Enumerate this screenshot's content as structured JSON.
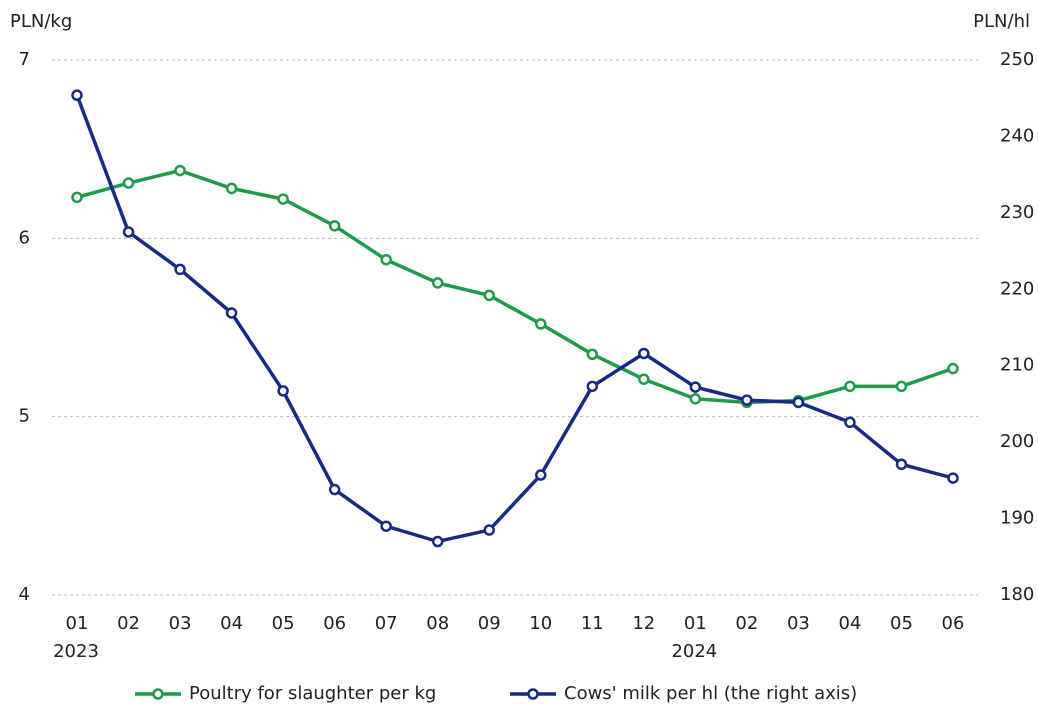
{
  "chart_data": {
    "type": "line",
    "categories": [
      "01",
      "02",
      "03",
      "04",
      "05",
      "06",
      "07",
      "08",
      "09",
      "10",
      "11",
      "12",
      "01",
      "02",
      "03",
      "04",
      "05",
      "06"
    ],
    "category_groups": [
      {
        "label": "2023",
        "start": 0
      },
      {
        "label": "2024",
        "start": 12
      }
    ],
    "ylabel": "PLN/kg",
    "y2label": "PLN/hl",
    "ylim": [
      4,
      7
    ],
    "yticks": [
      4,
      5,
      6,
      7
    ],
    "y2lim": [
      180,
      250
    ],
    "y2ticks": [
      180,
      190,
      200,
      210,
      220,
      230,
      240,
      250
    ],
    "grid": true,
    "legend": "bottom",
    "series": [
      {
        "name": "Poultry for slaughter per kg",
        "color": "#1e9a4a",
        "values": [
          6.23,
          6.31,
          6.38,
          6.28,
          6.22,
          6.07,
          5.88,
          5.75,
          5.68,
          5.52,
          5.35,
          5.21,
          5.1,
          5.08,
          5.09,
          5.17,
          5.17,
          5.27
        ]
      },
      {
        "name": "Cows' milk per hl (the right axis)",
        "color": "#1a2a80",
        "axis": "y2",
        "values": [
          245.4,
          227.5,
          222.6,
          216.9,
          206.7,
          193.8,
          189.0,
          187.0,
          188.5,
          195.7,
          207.3,
          211.6,
          207.2,
          205.5,
          205.2,
          202.6,
          197.1,
          195.3
        ]
      }
    ]
  }
}
